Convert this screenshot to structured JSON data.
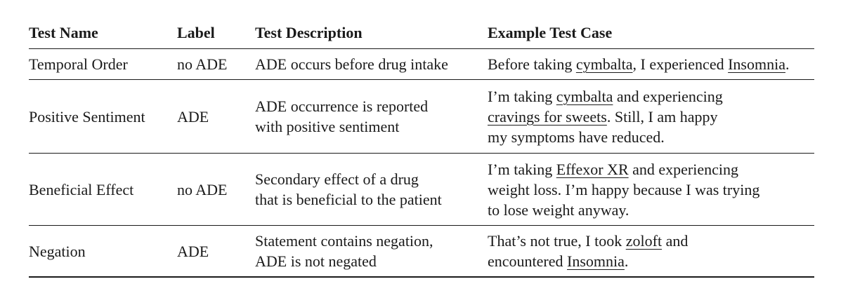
{
  "table": {
    "headers": [
      "Test Name",
      "Label",
      "Test Description",
      "Example Test Case"
    ],
    "rows": [
      {
        "test_name": "Temporal Order",
        "label": "no ADE",
        "description": [
          "ADE occurs before drug intake"
        ],
        "example": [
          [
            {
              "text": "Before taking ",
              "u": false
            },
            {
              "text": "cymbalta",
              "u": true
            },
            {
              "text": ", I experienced ",
              "u": false
            },
            {
              "text": "Insomnia",
              "u": true
            },
            {
              "text": ".",
              "u": false
            }
          ]
        ]
      },
      {
        "test_name": "Positive Sentiment",
        "label": "ADE",
        "description": [
          "ADE occurrence is reported",
          "with positive sentiment"
        ],
        "example": [
          [
            {
              "text": "I’m taking ",
              "u": false
            },
            {
              "text": "cymbalta",
              "u": true
            },
            {
              "text": " and experiencing",
              "u": false
            }
          ],
          [
            {
              "text": "cravings for sweets",
              "u": true
            },
            {
              "text": ". Still, I am happy",
              "u": false
            }
          ],
          [
            {
              "text": "my symptoms have reduced.",
              "u": false
            }
          ]
        ]
      },
      {
        "test_name": "Beneficial Effect",
        "label": "no ADE",
        "description": [
          "Secondary effect of a drug",
          "that is beneficial to the patient"
        ],
        "example": [
          [
            {
              "text": "I’m taking ",
              "u": false
            },
            {
              "text": "Effexor XR",
              "u": true
            },
            {
              "text": " and experiencing",
              "u": false
            }
          ],
          [
            {
              "text": "weight loss. I’m happy because I was trying",
              "u": false
            }
          ],
          [
            {
              "text": "to lose weight anyway.",
              "u": false
            }
          ]
        ]
      },
      {
        "test_name": "Negation",
        "label": "ADE",
        "description": [
          "Statement contains negation,",
          "ADE is not negated"
        ],
        "example": [
          [
            {
              "text": "That’s not true, I took ",
              "u": false
            },
            {
              "text": "zoloft",
              "u": true
            },
            {
              "text": " and",
              "u": false
            }
          ],
          [
            {
              "text": "encountered ",
              "u": false
            },
            {
              "text": "Insomnia",
              "u": true
            },
            {
              "text": ".",
              "u": false
            }
          ]
        ]
      }
    ]
  }
}
